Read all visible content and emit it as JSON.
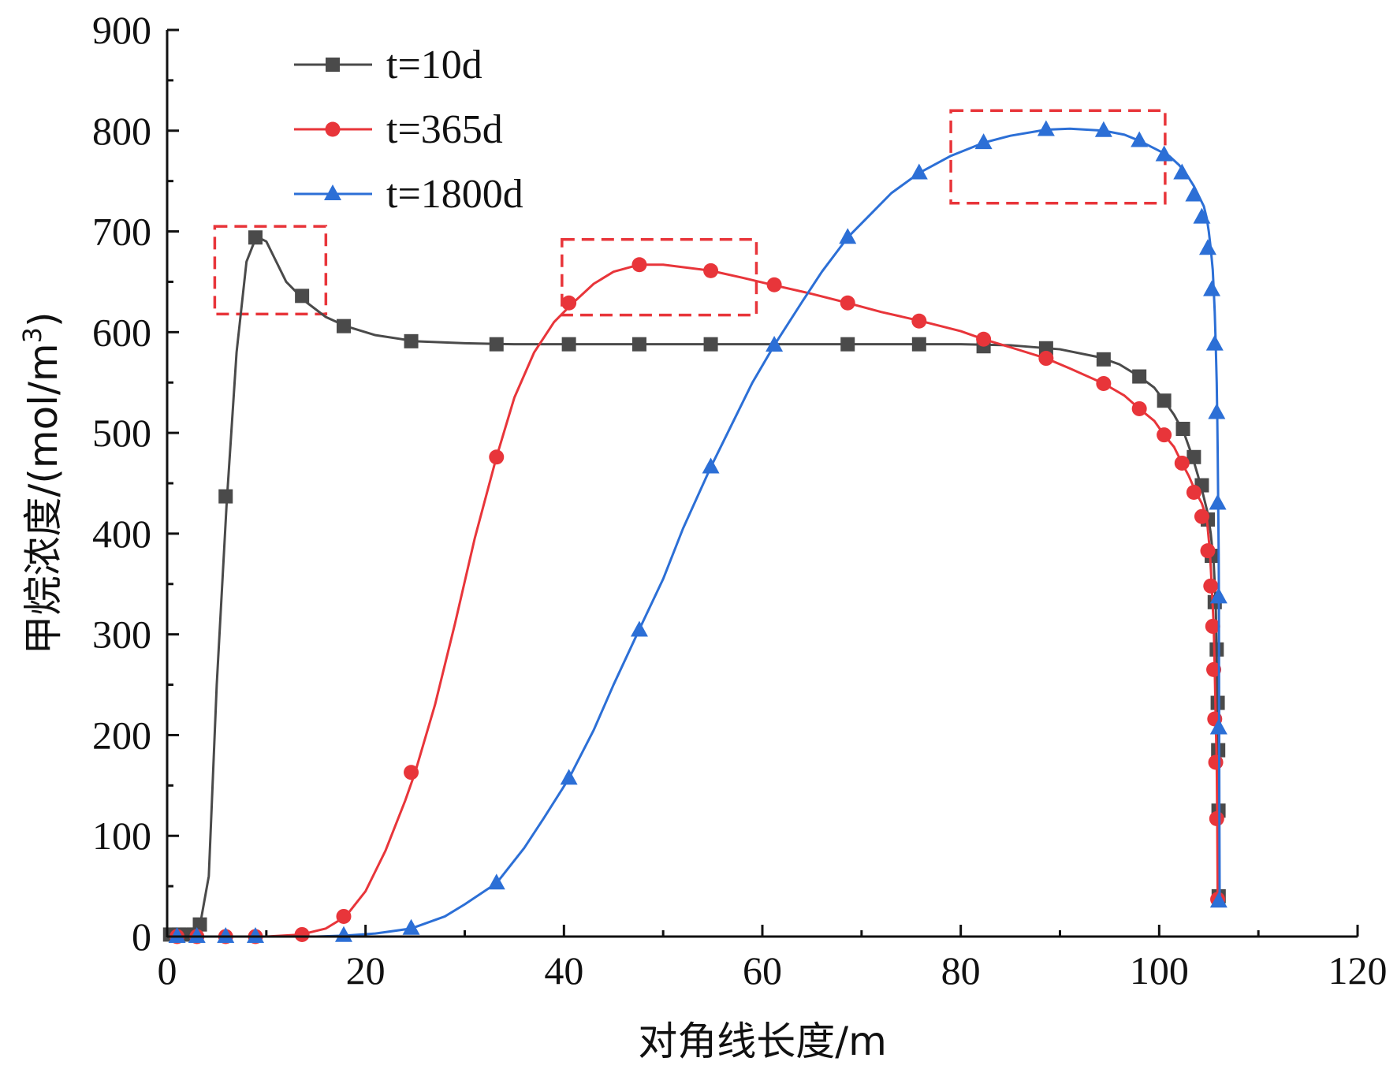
{
  "chart_data": {
    "type": "line",
    "title": "",
    "xlabel": "对角线长度/m",
    "ylabel": "甲烷浓度/(mol/m",
    "ylabel_sup": "3",
    "ylabel_close": ")",
    "xlim": [
      0,
      120
    ],
    "ylim": [
      0,
      900
    ],
    "xticks": [
      "0",
      "20",
      "40",
      "60",
      "80",
      "100",
      "120"
    ],
    "yticks": [
      "0",
      "100",
      "200",
      "300",
      "400",
      "500",
      "600",
      "700",
      "800",
      "900"
    ],
    "legend_position": "top-left",
    "series": [
      {
        "name": "t=10d",
        "color": "#4a4a4a",
        "marker": "square",
        "curve": [
          [
            0,
            2
          ],
          [
            2,
            2
          ],
          [
            3.2,
            5
          ],
          [
            4.2,
            60
          ],
          [
            5,
            250
          ],
          [
            6,
            430
          ],
          [
            7,
            580
          ],
          [
            8,
            670
          ],
          [
            9,
            695
          ],
          [
            10,
            690
          ],
          [
            11,
            670
          ],
          [
            12,
            650
          ],
          [
            14,
            630
          ],
          [
            16,
            615
          ],
          [
            18,
            606
          ],
          [
            21,
            597
          ],
          [
            25,
            591
          ],
          [
            30,
            589
          ],
          [
            35,
            588
          ],
          [
            50,
            588
          ],
          [
            70,
            588
          ],
          [
            80,
            588
          ],
          [
            85,
            587
          ],
          [
            90,
            583
          ],
          [
            94,
            575
          ],
          [
            96,
            568
          ],
          [
            98,
            556
          ],
          [
            99.5,
            545
          ],
          [
            100.5,
            532
          ],
          [
            101.5,
            518
          ],
          [
            102.5,
            500
          ],
          [
            103.3,
            478
          ],
          [
            103.9,
            458
          ],
          [
            104.4,
            440
          ],
          [
            104.9,
            420
          ],
          [
            105.2,
            400
          ],
          [
            105.5,
            370
          ],
          [
            105.7,
            330
          ],
          [
            105.8,
            280
          ],
          [
            105.85,
            230
          ],
          [
            105.9,
            180
          ],
          [
            105.92,
            120
          ],
          [
            105.95,
            40
          ]
        ],
        "markers": [
          [
            0.3,
            2
          ],
          [
            1.2,
            2
          ],
          [
            2,
            2
          ],
          [
            2.7,
            2
          ],
          [
            3.3,
            12
          ],
          [
            5.9,
            437
          ],
          [
            8.9,
            694
          ],
          [
            13.6,
            636
          ],
          [
            17.8,
            606
          ],
          [
            24.6,
            591
          ],
          [
            33.2,
            588
          ],
          [
            40.5,
            588
          ],
          [
            47.6,
            588
          ],
          [
            54.8,
            588
          ],
          [
            68.6,
            588
          ],
          [
            75.8,
            588
          ],
          [
            82.3,
            586
          ],
          [
            88.6,
            584
          ],
          [
            94.4,
            573
          ],
          [
            98,
            556
          ],
          [
            100.5,
            532
          ],
          [
            102.4,
            504
          ],
          [
            103.5,
            476
          ],
          [
            104.3,
            448
          ],
          [
            104.9,
            414
          ],
          [
            105.3,
            378
          ],
          [
            105.6,
            332
          ],
          [
            105.8,
            285
          ],
          [
            105.9,
            232
          ],
          [
            105.95,
            185
          ],
          [
            105.98,
            125
          ],
          [
            106,
            40
          ]
        ]
      },
      {
        "name": "t=365d",
        "color": "#e8353a",
        "marker": "circle",
        "curve": [
          [
            0,
            0
          ],
          [
            10,
            0
          ],
          [
            13.5,
            2
          ],
          [
            16,
            8
          ],
          [
            18,
            20
          ],
          [
            20,
            45
          ],
          [
            22,
            85
          ],
          [
            24,
            135
          ],
          [
            25,
            163
          ],
          [
            27,
            230
          ],
          [
            29,
            310
          ],
          [
            31,
            395
          ],
          [
            33.2,
            476
          ],
          [
            35,
            535
          ],
          [
            37,
            580
          ],
          [
            39,
            610
          ],
          [
            40.8,
            628
          ],
          [
            43,
            648
          ],
          [
            45,
            660
          ],
          [
            47.6,
            667
          ],
          [
            50,
            667
          ],
          [
            54.8,
            661
          ],
          [
            58,
            654
          ],
          [
            61,
            647
          ],
          [
            65,
            638
          ],
          [
            68.6,
            629
          ],
          [
            72,
            620
          ],
          [
            76,
            611
          ],
          [
            80,
            601
          ],
          [
            82.3,
            593
          ],
          [
            85,
            585
          ],
          [
            88.6,
            574
          ],
          [
            91,
            564
          ],
          [
            94.4,
            549
          ],
          [
            96.5,
            537
          ],
          [
            98,
            524
          ],
          [
            99.5,
            512
          ],
          [
            100.5,
            498
          ],
          [
            101.5,
            486
          ],
          [
            102.3,
            470
          ],
          [
            103,
            457
          ],
          [
            103.7,
            441
          ],
          [
            104.3,
            430
          ],
          [
            104.8,
            415
          ],
          [
            105.1,
            384
          ],
          [
            105.3,
            348
          ],
          [
            105.5,
            308
          ],
          [
            105.6,
            265
          ],
          [
            105.7,
            215
          ],
          [
            105.8,
            173
          ],
          [
            105.85,
            117
          ],
          [
            105.9,
            37
          ]
        ],
        "markers": [
          [
            1,
            0
          ],
          [
            3,
            0
          ],
          [
            5.9,
            0
          ],
          [
            8.9,
            0
          ],
          [
            13.6,
            2
          ],
          [
            17.8,
            20
          ],
          [
            24.6,
            163
          ],
          [
            33.2,
            476
          ],
          [
            40.5,
            629
          ],
          [
            47.6,
            667
          ],
          [
            54.8,
            661
          ],
          [
            61.2,
            647
          ],
          [
            68.6,
            629
          ],
          [
            75.8,
            611
          ],
          [
            82.3,
            593
          ],
          [
            88.6,
            574
          ],
          [
            94.4,
            549
          ],
          [
            98,
            524
          ],
          [
            100.5,
            498
          ],
          [
            102.3,
            470
          ],
          [
            103.5,
            441
          ],
          [
            104.3,
            417
          ],
          [
            104.9,
            383
          ],
          [
            105.2,
            348
          ],
          [
            105.4,
            308
          ],
          [
            105.5,
            265
          ],
          [
            105.6,
            216
          ],
          [
            105.7,
            173
          ],
          [
            105.8,
            117
          ],
          [
            105.9,
            37
          ]
        ]
      },
      {
        "name": "t=1800d",
        "color": "#2c6fd6",
        "marker": "triangle",
        "curve": [
          [
            0,
            0
          ],
          [
            15,
            0
          ],
          [
            18,
            1
          ],
          [
            21,
            3
          ],
          [
            24.6,
            8
          ],
          [
            28,
            20
          ],
          [
            30,
            32
          ],
          [
            33.2,
            53
          ],
          [
            36,
            88
          ],
          [
            38,
            118
          ],
          [
            40.5,
            157
          ],
          [
            43,
            205
          ],
          [
            45,
            250
          ],
          [
            47.6,
            305
          ],
          [
            50,
            355
          ],
          [
            52,
            405
          ],
          [
            54.8,
            466
          ],
          [
            57,
            510
          ],
          [
            59,
            550
          ],
          [
            61.2,
            587
          ],
          [
            64,
            630
          ],
          [
            66,
            660
          ],
          [
            68.6,
            694
          ],
          [
            71,
            718
          ],
          [
            73,
            738
          ],
          [
            75.8,
            758
          ],
          [
            79,
            775
          ],
          [
            82.3,
            788
          ],
          [
            85,
            795
          ],
          [
            88.6,
            801
          ],
          [
            91,
            802
          ],
          [
            94.4,
            800
          ],
          [
            96.5,
            796
          ],
          [
            98,
            790
          ],
          [
            100,
            780
          ],
          [
            101,
            775
          ],
          [
            102,
            766
          ],
          [
            102.8,
            756
          ],
          [
            103.5,
            745
          ],
          [
            104,
            735
          ],
          [
            104.5,
            725
          ],
          [
            104.8,
            713
          ],
          [
            105,
            700
          ],
          [
            105.2,
            683
          ],
          [
            105.4,
            662
          ],
          [
            105.5,
            642
          ],
          [
            105.6,
            620
          ],
          [
            105.7,
            588
          ],
          [
            105.8,
            550
          ],
          [
            105.85,
            520
          ],
          [
            105.9,
            480
          ],
          [
            105.95,
            430
          ],
          [
            106,
            380
          ],
          [
            106.02,
            337
          ],
          [
            106.03,
            280
          ],
          [
            106.05,
            200
          ],
          [
            106.07,
            120
          ],
          [
            106.1,
            35
          ]
        ],
        "markers": [
          [
            1,
            0
          ],
          [
            3,
            0
          ],
          [
            5.9,
            0
          ],
          [
            8.9,
            0
          ],
          [
            17.8,
            1
          ],
          [
            24.6,
            8
          ],
          [
            33.2,
            53
          ],
          [
            40.5,
            157
          ],
          [
            47.6,
            304
          ],
          [
            54.8,
            466
          ],
          [
            61.2,
            587
          ],
          [
            68.6,
            694
          ],
          [
            75.8,
            758
          ],
          [
            82.3,
            788
          ],
          [
            88.6,
            801
          ],
          [
            94.4,
            800
          ],
          [
            98,
            790
          ],
          [
            100.5,
            776
          ],
          [
            102.3,
            758
          ],
          [
            103.5,
            736
          ],
          [
            104.3,
            714
          ],
          [
            104.9,
            683
          ],
          [
            105.3,
            642
          ],
          [
            105.6,
            588
          ],
          [
            105.8,
            520
          ],
          [
            105.9,
            430
          ],
          [
            106,
            337
          ],
          [
            106,
            207
          ],
          [
            106,
            35
          ]
        ]
      }
    ],
    "highlight_boxes": [
      {
        "x": [
          4.8,
          16
        ],
        "y": [
          618,
          705
        ]
      },
      {
        "x": [
          39.8,
          59.4
        ],
        "y": [
          617,
          692
        ]
      },
      {
        "x": [
          79,
          100.6
        ],
        "y": [
          728,
          820
        ]
      }
    ]
  }
}
